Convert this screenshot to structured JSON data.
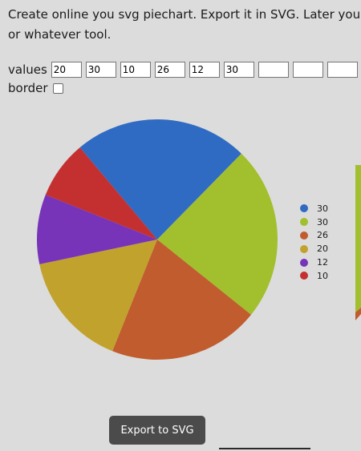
{
  "intro": {
    "line1": "Create online you svg piechart. Export it in SVG. Later you",
    "line2": "or whatever tool."
  },
  "values_label": "values",
  "value_inputs": [
    "20",
    "30",
    "10",
    "26",
    "12",
    "30",
    "",
    "",
    ""
  ],
  "border_label": "border",
  "border_checked": false,
  "chart_data": {
    "type": "pie",
    "slices": [
      {
        "label": "30",
        "value": 30,
        "color": "#2f6bc3"
      },
      {
        "label": "30",
        "value": 30,
        "color": "#a2bf2e"
      },
      {
        "label": "26",
        "value": 26,
        "color": "#c05c2e"
      },
      {
        "label": "20",
        "value": 20,
        "color": "#c1a22d"
      },
      {
        "label": "12",
        "value": 12,
        "color": "#7734b8"
      },
      {
        "label": "10",
        "value": 10,
        "color": "#c43030"
      }
    ],
    "legend": "right"
  },
  "export_label": "Export to SVG"
}
